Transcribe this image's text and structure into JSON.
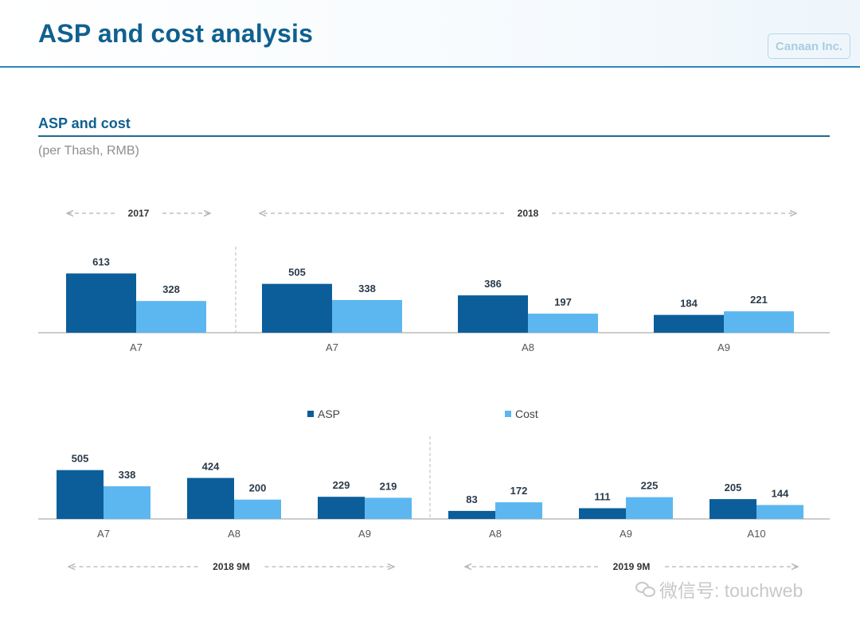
{
  "page": {
    "title": "ASP and cost analysis",
    "logo_text": "Canaan Inc.",
    "section_title": "ASP and cost",
    "unit": "(per Thash, RMB)",
    "watermark": "微信号: touchweb"
  },
  "colors": {
    "asp": "#0b5e9a",
    "cost": "#5cb7f0",
    "accent": "#10608f"
  },
  "legend": {
    "asp": "ASP",
    "cost": "Cost"
  },
  "chart_data": [
    {
      "type": "bar",
      "title": "",
      "legend": "center",
      "groups": [
        {
          "period": "2017",
          "categories": [
            "A7"
          ],
          "series": [
            {
              "name": "ASP",
              "values": [
                613
              ]
            },
            {
              "name": "Cost",
              "values": [
                328
              ]
            }
          ]
        },
        {
          "period": "2018",
          "categories": [
            "A7",
            "A8",
            "A9"
          ],
          "series": [
            {
              "name": "ASP",
              "values": [
                505,
                386,
                184
              ]
            },
            {
              "name": "Cost",
              "values": [
                338,
                197,
                221
              ]
            }
          ]
        }
      ]
    },
    {
      "type": "bar",
      "title": "",
      "groups": [
        {
          "period": "2018 9M",
          "categories": [
            "A7",
            "A8",
            "A9"
          ],
          "series": [
            {
              "name": "ASP",
              "values": [
                505,
                424,
                229
              ]
            },
            {
              "name": "Cost",
              "values": [
                338,
                200,
                219
              ]
            }
          ]
        },
        {
          "period": "2019 9M",
          "categories": [
            "A8",
            "A9",
            "A10"
          ],
          "series": [
            {
              "name": "ASP",
              "values": [
                83,
                111,
                205
              ]
            },
            {
              "name": "Cost",
              "values": [
                172,
                225,
                144
              ]
            }
          ]
        }
      ]
    }
  ]
}
